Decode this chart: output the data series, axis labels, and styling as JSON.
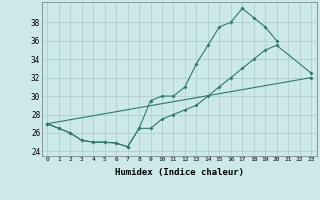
{
  "xlabel": "Humidex (Indice chaleur)",
  "background_color": "#cce8e8",
  "grid_color": "#aacccc",
  "line_color": "#2d7a6a",
  "xlim": [
    -0.5,
    23.5
  ],
  "ylim": [
    23.5,
    40.2
  ],
  "xticks": [
    0,
    1,
    2,
    3,
    4,
    5,
    6,
    7,
    8,
    9,
    10,
    11,
    12,
    13,
    14,
    15,
    16,
    17,
    18,
    19,
    20,
    21,
    22,
    23
  ],
  "yticks": [
    24,
    26,
    28,
    30,
    32,
    34,
    36,
    38
  ],
  "series1_x": [
    0,
    1,
    2,
    3,
    4,
    5,
    6,
    7,
    8,
    9,
    10,
    11,
    12,
    13,
    14,
    15,
    16,
    17,
    18,
    19,
    20
  ],
  "series1_y": [
    27,
    26.5,
    26,
    25.2,
    25,
    25,
    24.9,
    24.5,
    26.5,
    29.5,
    30,
    30,
    31,
    33.5,
    35.5,
    37.5,
    38,
    39.5,
    38.5,
    37.5,
    36
  ],
  "series2_x": [
    0,
    1,
    2,
    3,
    4,
    5,
    6,
    7,
    8,
    9,
    10,
    11,
    12,
    13,
    14,
    15,
    16,
    17,
    18,
    19,
    20,
    23
  ],
  "series2_y": [
    27,
    26.5,
    26,
    25.2,
    25,
    25,
    24.9,
    24.5,
    26.5,
    26.5,
    27.5,
    28,
    28.5,
    29,
    30,
    31,
    32,
    33,
    34,
    35,
    35.5,
    32.5
  ],
  "series3_x": [
    0,
    23
  ],
  "series3_y": [
    27,
    32
  ]
}
